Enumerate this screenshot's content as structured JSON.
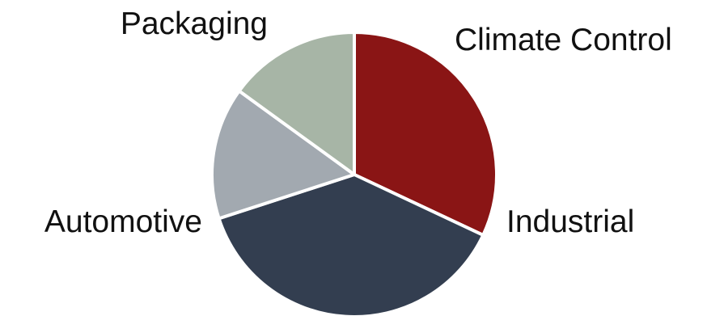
{
  "chart_data": {
    "type": "pie",
    "title": "",
    "categories": [
      "Industrial",
      "Automotive",
      "Packaging",
      "Climate Control"
    ],
    "values": [
      32,
      38,
      15,
      15
    ],
    "colors": [
      "#8a1515",
      "#333e50",
      "#a2a9b0",
      "#a7b5a6"
    ],
    "start_angle_deg": 90,
    "direction": "clockwise",
    "legend": "none",
    "data_labels": "category names outside slices"
  }
}
